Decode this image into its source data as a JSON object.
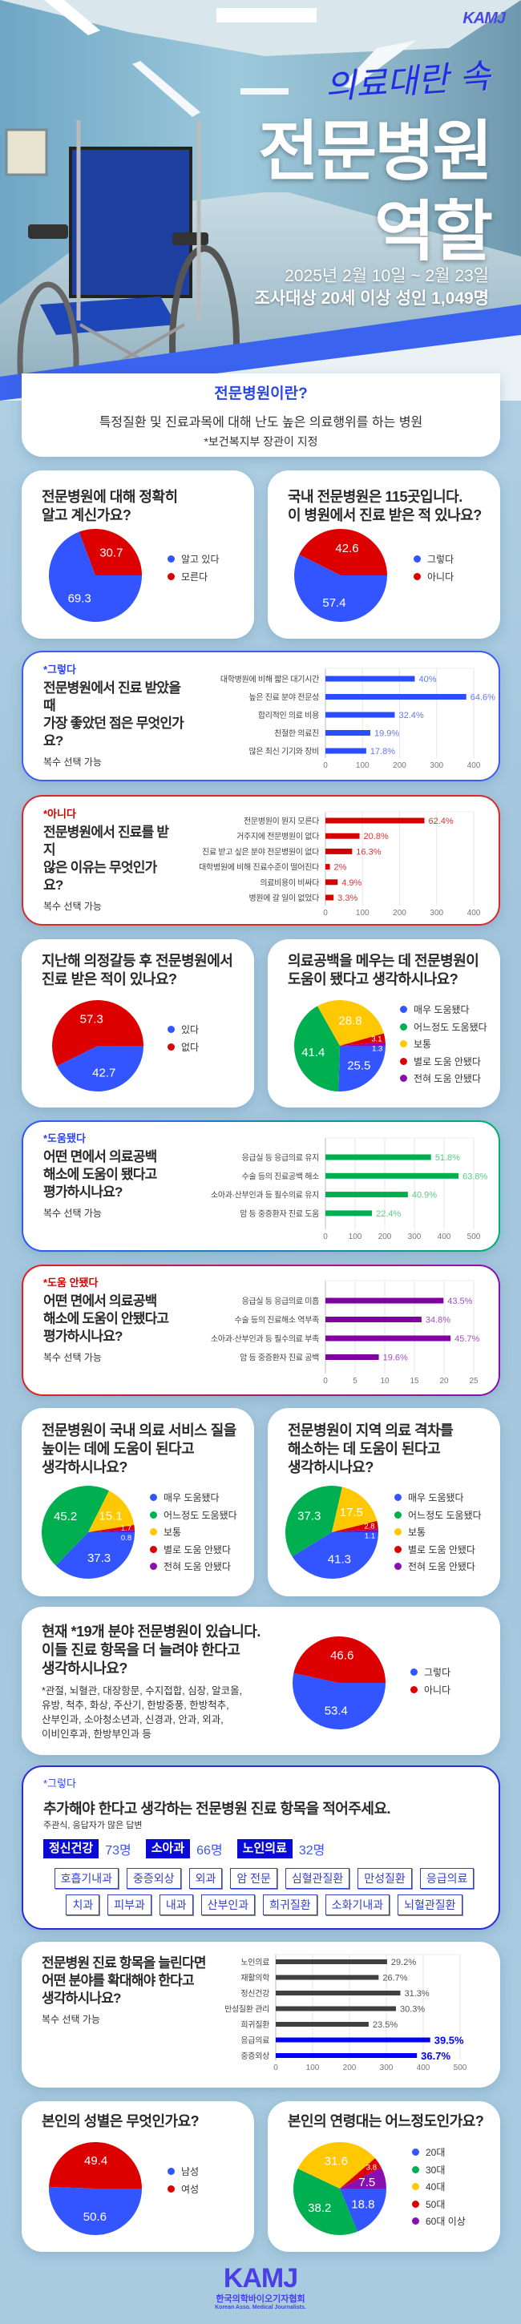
{
  "header": {
    "logo": "KAMJ",
    "kicker": "의료대란 속",
    "title_line1": "전문병원",
    "title_line2": "역할",
    "date": "2025년 2월 10일 ~ 2월 23일",
    "subject": "조사대상 20세 이상 성인 1,049명"
  },
  "intro": {
    "heading": "전문병원이란?",
    "body": "특정질환 및 진료과목에 대해 난도 높은 의료행위를 하는 병원",
    "note": "*보건복지부 장관이 지정"
  },
  "multi_note": "복수 선택 가능",
  "colors": {
    "blue": "#3355ff",
    "red": "#dd0000",
    "green": "#00b050",
    "yellow": "#ffc800",
    "purple": "#8a0fb0"
  },
  "chart_data": [
    {
      "type": "pie",
      "title": "전문병원에 대해 정확히\n알고 계신가요?",
      "categories": [
        "알고 있다",
        "모른다"
      ],
      "values": [
        69.3,
        30.7
      ],
      "colors": [
        "#3355ff",
        "#dd0000"
      ]
    },
    {
      "type": "pie",
      "title": "국내 전문병원은 115곳입니다.\n이 병원에서 진료 받은 적 있나요?",
      "categories": [
        "그렇다",
        "아니다"
      ],
      "values": [
        57.4,
        42.6
      ],
      "colors": [
        "#3355ff",
        "#dd0000"
      ]
    },
    {
      "type": "bar",
      "tag": "*그렇다",
      "title": "전문병원에서 진료 받았을 때\n가장 좋았던 점은 무엇인가요?",
      "categories": [
        "대학병원에 비해 짧은 대기시간",
        "높은 진료 분야 전문성",
        "합리적인 의료 비용",
        "친절한 의료진",
        "많은 최신 기기와 장비"
      ],
      "values": [
        241,
        380,
        187,
        121,
        110
      ],
      "value_labels": [
        "40%",
        "64.6%",
        "32.4%",
        "19.9%",
        "17.8%"
      ],
      "xlim": [
        0,
        400
      ],
      "xticks": [
        0,
        100,
        200,
        300,
        400
      ],
      "color": "#2a4dff",
      "label_color": "#6677ee"
    },
    {
      "type": "bar",
      "tag": "*아니다",
      "title": "전문병원에서 진료를 받지\n않은 이유는 무엇인가요?",
      "categories": [
        "전문병원이 뭔지 모른다",
        "거주지에 전문병원이 없다",
        "진료 받고 싶은 분야 전문병원이 없다",
        "대학병원에 비해 진료수준이 떨어진다",
        "의료비용이 비싸다",
        "병원에 갈 일이 없었다"
      ],
      "values": [
        267,
        92,
        72,
        12,
        33,
        22
      ],
      "value_labels": [
        "62.4%",
        "20.8%",
        "16.3%",
        "2%",
        "4.9%",
        "3.3%"
      ],
      "xlim": [
        0,
        400
      ],
      "xticks": [
        0,
        100,
        200,
        300,
        400
      ],
      "color": "#d40000",
      "label_color": "#dd3333"
    },
    {
      "type": "pie",
      "title": "지난해 의정갈등 후 전문병원에서\n진료 받은 적이 있나요?",
      "categories": [
        "있다",
        "없다"
      ],
      "values": [
        42.7,
        57.3
      ],
      "colors": [
        "#3355ff",
        "#dd0000"
      ]
    },
    {
      "type": "pie",
      "title": "의료공백을 메우는 데 전문병원이\n도움이 됐다고 생각하시나요?",
      "categories": [
        "매우 도움됐다",
        "어느정도 도움됐다",
        "보통",
        "별로 도움 안됐다",
        "전혀 도움 안됐다"
      ],
      "values": [
        25.5,
        41.4,
        28.8,
        3.1,
        1.3
      ],
      "colors": [
        "#3355ff",
        "#00b050",
        "#ffc800",
        "#dd0000",
        "#8a0fb0"
      ]
    },
    {
      "type": "bar",
      "tag": "*도움됐다",
      "title": "어떤 면에서 의료공백\n해소에 도움이 됐다고\n평가하시나요?",
      "categories": [
        "응급실 등 응급의료 유지",
        "수술 등의 진료공백 해소",
        "소아과·산부인과 등 필수의료 유지",
        "암 등 중증환자 진료 도움"
      ],
      "values": [
        356,
        449,
        278,
        157
      ],
      "value_labels": [
        "51.8%",
        "63.8%",
        "40.9%",
        "22.4%"
      ],
      "xlim": [
        0,
        500
      ],
      "xticks": [
        0,
        100,
        200,
        300,
        400,
        500
      ],
      "color": "#00b050",
      "label_color": "#55cc88"
    },
    {
      "type": "bar",
      "tag": "*도움 안됐다",
      "title": "어떤 면에서 의료공백\n해소에 도움이 안됐다고\n평가하시나요?",
      "categories": [
        "응급실 등 응급의료 미흡",
        "수술 등의 진료해소 역부족",
        "소아과·산부인과 등 필수의료 부족",
        "암 등 중증환자 진료 공백"
      ],
      "values": [
        19.9,
        16.2,
        21.1,
        9.0
      ],
      "value_labels": [
        "43.5%",
        "34.8%",
        "45.7%",
        "19.6%"
      ],
      "xlim": [
        0,
        25
      ],
      "xticks": [
        0,
        5,
        10,
        15,
        20,
        25
      ],
      "color": "#8000a0",
      "label_color": "#a050c0"
    },
    {
      "type": "pie",
      "title": "전문병원이 국내 의료 서비스 질을\n높이는 데에 도움이 된다고\n생각하시나요?",
      "categories": [
        "매우 도움됐다",
        "어느정도 도움됐다",
        "보통",
        "별로 도움 안됐다",
        "전혀 도움 안됐다"
      ],
      "values": [
        37.3,
        45.2,
        15.1,
        1.7,
        0.8
      ],
      "colors": [
        "#3355ff",
        "#00b050",
        "#ffc800",
        "#dd0000",
        "#8a0fb0"
      ]
    },
    {
      "type": "pie",
      "title": "전문병원이 지역 의료 격차를\n해소하는 데 도움이 된다고\n생각하시나요?",
      "categories": [
        "매우 도움됐다",
        "어느정도 도움됐다",
        "보통",
        "별로 도움 안됐다",
        "전혀 도움 안됐다"
      ],
      "values": [
        41.3,
        37.3,
        17.5,
        2.8,
        1.1
      ],
      "colors": [
        "#3355ff",
        "#00b050",
        "#ffc800",
        "#dd0000",
        "#8a0fb0"
      ]
    },
    {
      "type": "pie",
      "title": "현재 *19개 분야 전문병원이 있습니다.\n이들 진료 항목을 더 늘려야 한다고\n생각하시나요?",
      "note": "*관절, 뇌혈관, 대장항문, 수지접합, 심장, 알코올,\n유방, 척추, 화상, 주산기, 한방중풍, 한방척추,\n산부인과, 소아청소년과, 신경과, 안과, 외과,\n이비인후과, 한방부인과 등",
      "categories": [
        "그렇다",
        "아니다"
      ],
      "values": [
        53.4,
        46.6
      ],
      "colors": [
        "#3355ff",
        "#dd0000"
      ]
    },
    {
      "type": "bar",
      "title": "전문병원 진료 항목을 늘린다면\n어떤 분야를 확대해야 한다고\n생각하시나요?",
      "categories": [
        "노인의료",
        "재활의학",
        "정신건강",
        "만성질환 관리",
        "희귀질환",
        "응급의료",
        "중증외상"
      ],
      "values": [
        302,
        279,
        338,
        326,
        252,
        419,
        383
      ],
      "value_labels": [
        "29.2%",
        "26.7%",
        "31.3%",
        "30.3%",
        "23.5%",
        "39.5%",
        "36.7%"
      ],
      "highlight": [
        false,
        false,
        false,
        false,
        false,
        true,
        true
      ],
      "xlim": [
        0,
        500
      ],
      "xticks": [
        0,
        100,
        200,
        300,
        400,
        500
      ],
      "color": "#404040",
      "highlight_color": "#0000ff",
      "label_color": "#555555"
    },
    {
      "type": "pie",
      "title": "본인의 성별은 무엇인가요?",
      "categories": [
        "남성",
        "여성"
      ],
      "values": [
        50.6,
        49.4
      ],
      "colors": [
        "#3355ff",
        "#dd0000"
      ]
    },
    {
      "type": "pie",
      "title": "본인의 연령대는 어느정도인가요?",
      "categories": [
        "20대",
        "30대",
        "40대",
        "50대",
        "60대 이상"
      ],
      "values": [
        18.8,
        38.2,
        31.6,
        3.8,
        7.5
      ],
      "colors": [
        "#3355ff",
        "#00b050",
        "#ffc800",
        "#dd0000",
        "#8a0fb0"
      ]
    }
  ],
  "open_question": {
    "tag": "*그렇다",
    "title": "추가해야 한다고 생각하는 전문병원 진료 항목을 적어주세요.",
    "sub": "주관식, 응답자가 많은 답변",
    "top": [
      {
        "label": "정신건강",
        "count": "73명"
      },
      {
        "label": "소아과",
        "count": "66명"
      },
      {
        "label": "노인의료",
        "count": "32명"
      }
    ],
    "others": [
      "호흡기내과",
      "중증외상",
      "외과",
      "암 전문",
      "심혈관질환",
      "만성질환",
      "응급의료",
      "치과",
      "피부과",
      "내과",
      "산부인과",
      "희귀질환",
      "소화기내과",
      "뇌혈관질환"
    ]
  },
  "footer": {
    "logo": "KAMJ",
    "org_ko": "한국의학바이오기자협회",
    "org_en": "Korean Asso. Medical Journalists."
  }
}
